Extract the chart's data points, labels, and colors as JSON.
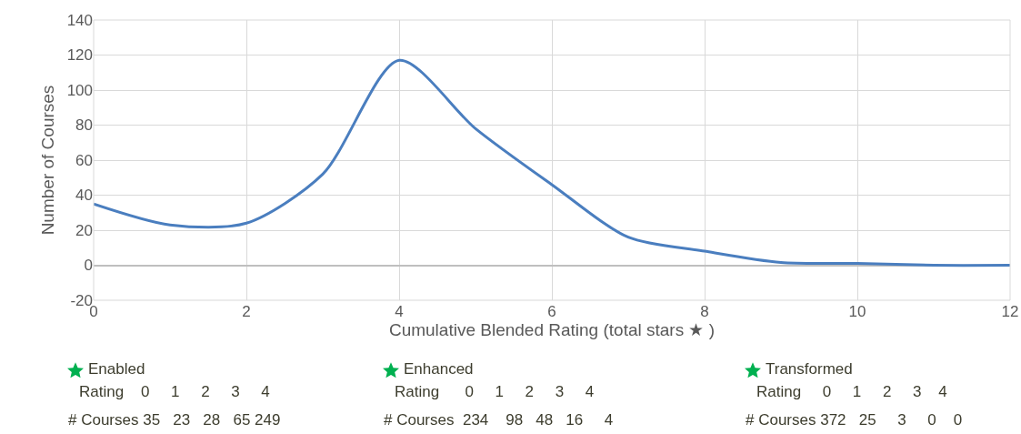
{
  "chart_data": {
    "type": "line",
    "xlabel": "Cumulative Blended Rating (total stars ★ )",
    "ylabel": "Number of Courses",
    "x": [
      0,
      1,
      2,
      3,
      4,
      5,
      6,
      7,
      8,
      9,
      10,
      11,
      12
    ],
    "series": [
      {
        "color": "#4a7ebf",
        "values": [
          35,
          23,
          24,
          52,
          117,
          78,
          46,
          16,
          8,
          1.5,
          1,
          0,
          0
        ]
      }
    ],
    "xlim": [
      0,
      12
    ],
    "xticks": [
      0,
      2,
      4,
      6,
      8,
      10,
      12
    ],
    "ylim": [
      -20,
      140
    ],
    "yticks": [
      -20,
      0,
      20,
      40,
      60,
      80,
      100,
      120,
      140
    ],
    "grid": true,
    "marker": "none",
    "line_style": "solid",
    "annotations": [
      "Enabled",
      "Rating    0     1     2     3     4",
      "# Courses 35   23   28   65 249",
      "Enhanced",
      "Rating      0     1     2     3     4",
      "# Courses  234    98   48   16     4",
      "Transformed",
      "Rating     0     1     2     3    4",
      "# Courses 372   25     3     0    0"
    ]
  }
}
